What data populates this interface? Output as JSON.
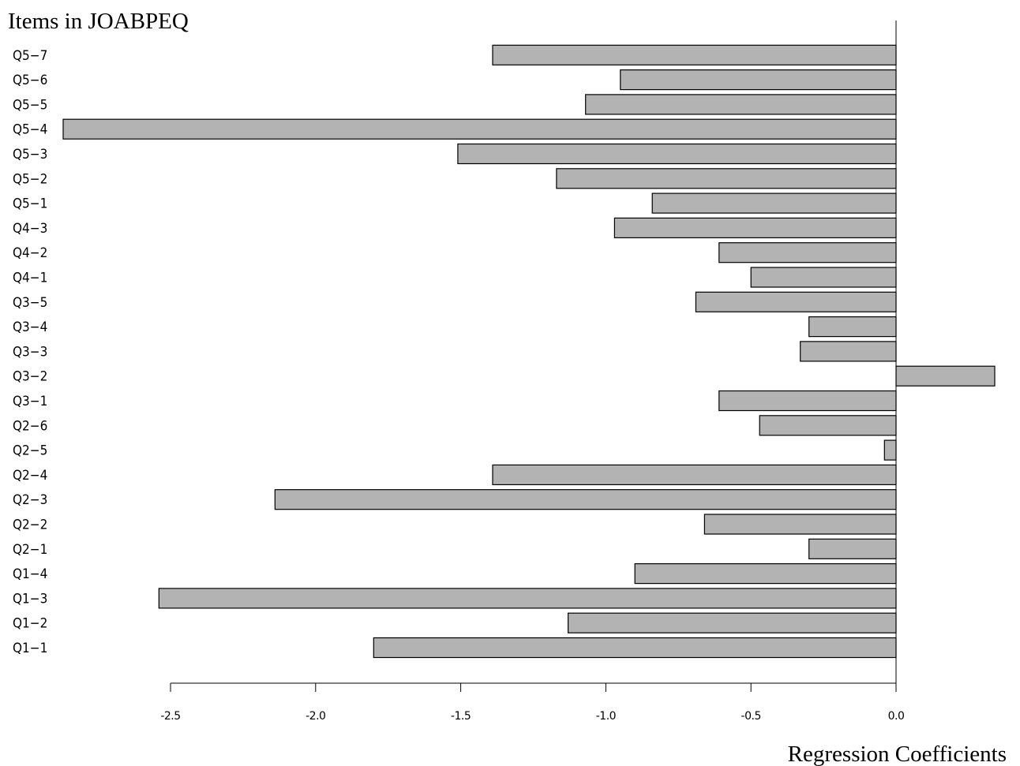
{
  "chart_data": {
    "type": "bar",
    "orientation": "horizontal",
    "ylabel": "Items in JOABPEQ",
    "xlabel": "Regression  Coefficients",
    "categories": [
      "Q1-1",
      "Q1-2",
      "Q1-3",
      "Q1-4",
      "Q2-1",
      "Q2-2",
      "Q2-3",
      "Q2-4",
      "Q2-5",
      "Q2-6",
      "Q3-1",
      "Q3-2",
      "Q3-3",
      "Q3-4",
      "Q3-5",
      "Q4-1",
      "Q4-2",
      "Q4-3",
      "Q5-1",
      "Q5-2",
      "Q5-3",
      "Q5-4",
      "Q5-5",
      "Q5-6",
      "Q5-7"
    ],
    "category_labels": [
      "Q1−1",
      "Q1−2",
      "Q1−3",
      "Q1−4",
      "Q2−1",
      "Q2−2",
      "Q2−3",
      "Q2−4",
      "Q2−5",
      "Q2−6",
      "Q3−1",
      "Q3−2",
      "Q3−3",
      "Q3−4",
      "Q3−5",
      "Q4−1",
      "Q4−2",
      "Q4−3",
      "Q5−1",
      "Q5−2",
      "Q5−3",
      "Q5−4",
      "Q5−5",
      "Q5−6",
      "Q5−7"
    ],
    "values": [
      -1.8,
      -1.13,
      -2.54,
      -0.9,
      -0.3,
      -0.66,
      -2.14,
      -1.39,
      -0.04,
      -0.47,
      -0.61,
      0.34,
      -0.33,
      -0.3,
      -0.69,
      -0.5,
      -0.61,
      -0.97,
      -0.84,
      -1.17,
      -1.51,
      -2.87,
      -1.07,
      -0.95,
      -1.39
    ],
    "xticks": [
      -2.5,
      -2.0,
      -1.5,
      -1.0,
      -0.5,
      0.0
    ],
    "xtick_labels": [
      "-2.5",
      "-2.0",
      "-1.5",
      "-1.0",
      "-0.5",
      "0.0"
    ],
    "xlim": [
      -2.9,
      0.4
    ],
    "bar_color": "#b3b3b3",
    "edge_color": "#000000",
    "grid": false
  }
}
